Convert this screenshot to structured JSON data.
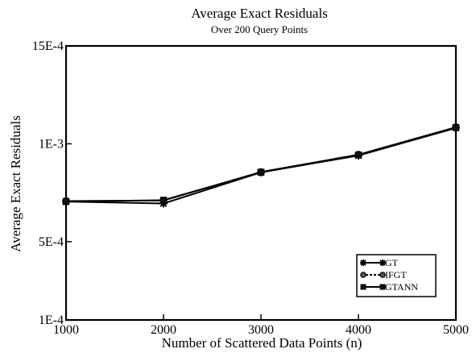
{
  "chart_data": {
    "type": "line",
    "title": "Average Exact Residuals",
    "subtitle": "Over 200 Query Points",
    "xlabel": "Number of Scattered Data Points (n)",
    "ylabel": "Average Exact Residuals",
    "xlim": [
      1000,
      5000
    ],
    "ylim": [
      0.0001,
      0.0015
    ],
    "x_ticks": [
      1000,
      2000,
      3000,
      4000,
      5000
    ],
    "x_tick_labels": [
      "1000",
      "2000",
      "3000",
      "4000",
      "5000"
    ],
    "y_ticks": [
      0.0001,
      0.0005,
      0.001,
      0.0015
    ],
    "y_tick_labels": [
      "1E-4",
      "5E-4",
      "1E-3",
      "15E-4"
    ],
    "grid": false,
    "legend_position": "bottom-right",
    "x": [
      1000,
      2000,
      3000,
      4000,
      5000
    ],
    "series": [
      {
        "name": "GT",
        "marker": "asterisk",
        "values": [
          0.000705,
          0.000695,
          0.000854,
          0.00094,
          0.001081
        ]
      },
      {
        "name": "IFGT",
        "marker": "circle",
        "values": [
          0.000708,
          0.00071,
          0.000856,
          0.000945,
          0.001085
        ]
      },
      {
        "name": "GTANN",
        "marker": "square",
        "values": [
          0.000705,
          0.000712,
          0.000855,
          0.000943,
          0.001083
        ]
      }
    ]
  }
}
